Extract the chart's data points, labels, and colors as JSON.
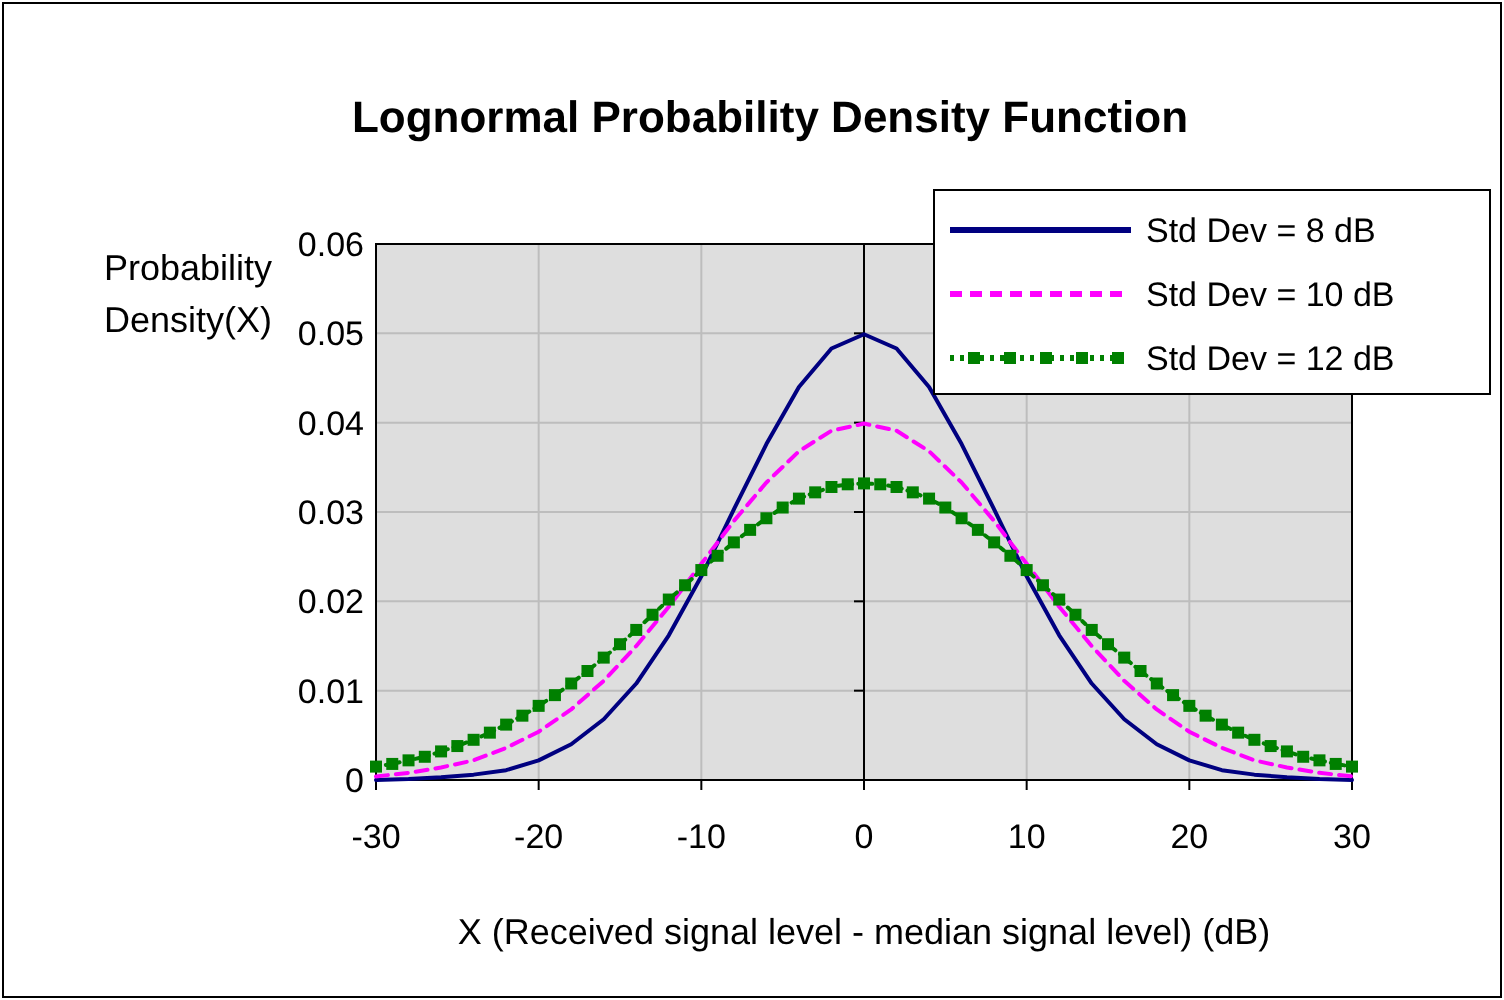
{
  "chart_data": {
    "type": "line",
    "title": "Lognormal Probability Density Function",
    "xlabel": "X (Received signal level - median signal level) (dB)",
    "ylabel": "Probability Density(X)",
    "xlim": [
      -30,
      30
    ],
    "xticks": [
      -30,
      -20,
      -10,
      0,
      10,
      20,
      30
    ],
    "ylim": [
      0,
      0.06
    ],
    "yticks": [
      0,
      0.01,
      0.02,
      0.03,
      0.04,
      0.05,
      0.06
    ],
    "grid": true,
    "legend": "top right",
    "series": [
      {
        "name": "Std Dev = 8 dB",
        "color": "#000080",
        "line_style": "solid",
        "marker": "none",
        "x": [
          -30,
          -28,
          -26,
          -24,
          -22,
          -20,
          -18,
          -16,
          -14,
          -12,
          -10,
          -8,
          -6,
          -4,
          -2,
          0,
          2,
          4,
          6,
          8,
          10,
          12,
          14,
          16,
          18,
          20,
          22,
          24,
          26,
          28,
          30
        ],
        "values": [
          0.0,
          0.0001,
          0.0003,
          0.0006,
          0.0011,
          0.0022,
          0.004,
          0.0068,
          0.0108,
          0.0162,
          0.0228,
          0.0303,
          0.0376,
          0.044,
          0.0483,
          0.0499,
          0.0483,
          0.044,
          0.0376,
          0.0303,
          0.0228,
          0.0162,
          0.0108,
          0.0068,
          0.004,
          0.0022,
          0.0011,
          0.0006,
          0.0003,
          0.0001,
          0.0
        ]
      },
      {
        "name": "Std Dev = 10 dB",
        "color": "#ff00ff",
        "line_style": "dashed",
        "marker": "none",
        "x": [
          -30,
          -28,
          -26,
          -24,
          -22,
          -20,
          -18,
          -16,
          -14,
          -12,
          -10,
          -8,
          -6,
          -4,
          -2,
          0,
          2,
          4,
          6,
          8,
          10,
          12,
          14,
          16,
          18,
          20,
          22,
          24,
          26,
          28,
          30
        ],
        "values": [
          0.0004,
          0.0008,
          0.0014,
          0.0022,
          0.0036,
          0.0054,
          0.0079,
          0.0111,
          0.015,
          0.0194,
          0.0242,
          0.029,
          0.0333,
          0.0368,
          0.0391,
          0.0399,
          0.0391,
          0.0368,
          0.0333,
          0.029,
          0.0242,
          0.0194,
          0.015,
          0.0111,
          0.0079,
          0.0054,
          0.0036,
          0.0022,
          0.0014,
          0.0008,
          0.0004
        ]
      },
      {
        "name": "Std Dev = 12 dB",
        "color": "#008000",
        "line_style": "dotted",
        "marker": "square",
        "x": [
          -30,
          -29,
          -28,
          -27,
          -26,
          -25,
          -24,
          -23,
          -22,
          -21,
          -20,
          -19,
          -18,
          -17,
          -16,
          -15,
          -14,
          -13,
          -12,
          -11,
          -10,
          -9,
          -8,
          -7,
          -6,
          -5,
          -4,
          -3,
          -2,
          -1,
          0,
          1,
          2,
          3,
          4,
          5,
          6,
          7,
          8,
          9,
          10,
          11,
          12,
          13,
          14,
          15,
          16,
          17,
          18,
          19,
          20,
          21,
          22,
          23,
          24,
          25,
          26,
          27,
          28,
          29,
          30
        ],
        "values": [
          0.0015,
          0.0018,
          0.0022,
          0.0026,
          0.0032,
          0.0038,
          0.0045,
          0.0053,
          0.0062,
          0.0072,
          0.0083,
          0.0095,
          0.0108,
          0.0122,
          0.0137,
          0.0152,
          0.0168,
          0.0185,
          0.0202,
          0.0218,
          0.0235,
          0.0251,
          0.0266,
          0.028,
          0.0293,
          0.0305,
          0.0315,
          0.0322,
          0.0328,
          0.0331,
          0.0332,
          0.0331,
          0.0328,
          0.0322,
          0.0315,
          0.0305,
          0.0293,
          0.028,
          0.0266,
          0.0251,
          0.0235,
          0.0218,
          0.0202,
          0.0185,
          0.0168,
          0.0152,
          0.0137,
          0.0122,
          0.0108,
          0.0095,
          0.0083,
          0.0072,
          0.0062,
          0.0053,
          0.0045,
          0.0038,
          0.0032,
          0.0026,
          0.0022,
          0.0018,
          0.0015
        ]
      }
    ]
  }
}
